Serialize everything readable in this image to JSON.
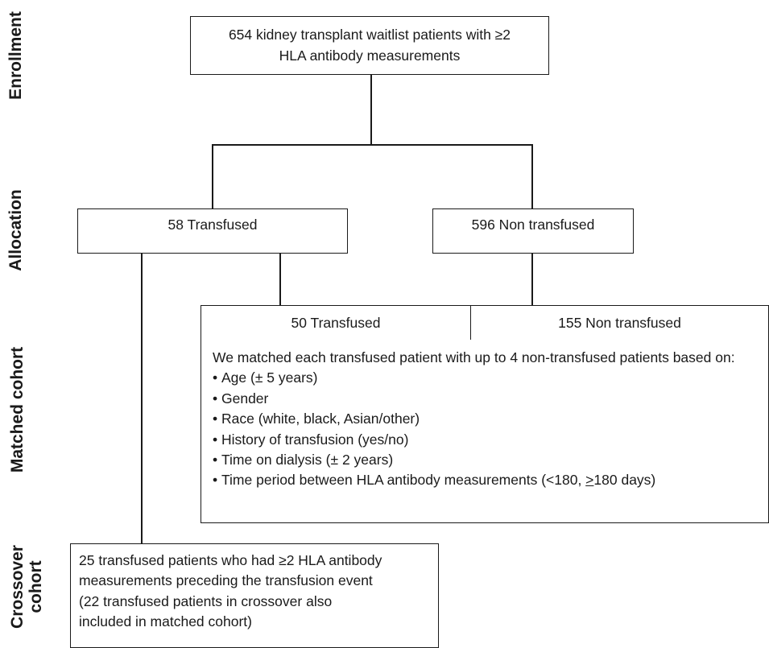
{
  "stages": {
    "enrollment": "Enrollment",
    "allocation": "Allocation",
    "matched": "Matched cohort",
    "crossover_line1": "Crossover",
    "crossover_line2": "cohort"
  },
  "enrollment_box": {
    "line1": "654 kidney transplant waitlist patients with ≥2",
    "line2": "HLA antibody measurements"
  },
  "allocation": {
    "transfused": "58 Transfused",
    "non_transfused": "596 Non transfused"
  },
  "matched": {
    "transfused": "50 Transfused",
    "non_transfused": "155 Non transfused",
    "intro": "We matched each transfused patient with up to 4 non-transfused patients based on:",
    "criteria": [
      "Age (± 5 years)",
      "Gender",
      "Race (white, black, Asian/other)",
      "History of transfusion (yes/no)",
      "Time on dialysis (± 2 years)"
    ],
    "last_criterion_prefix": "Time period between HLA antibody measurements (<180, ",
    "last_criterion_ge": ">",
    "last_criterion_suffix": "180 days)"
  },
  "crossover": {
    "line1": "25 transfused patients who had ≥2 HLA antibody",
    "line2": "measurements preceding the transfusion event",
    "line3": "(22 transfused patients in crossover also",
    "line4": "included in matched cohort)"
  }
}
